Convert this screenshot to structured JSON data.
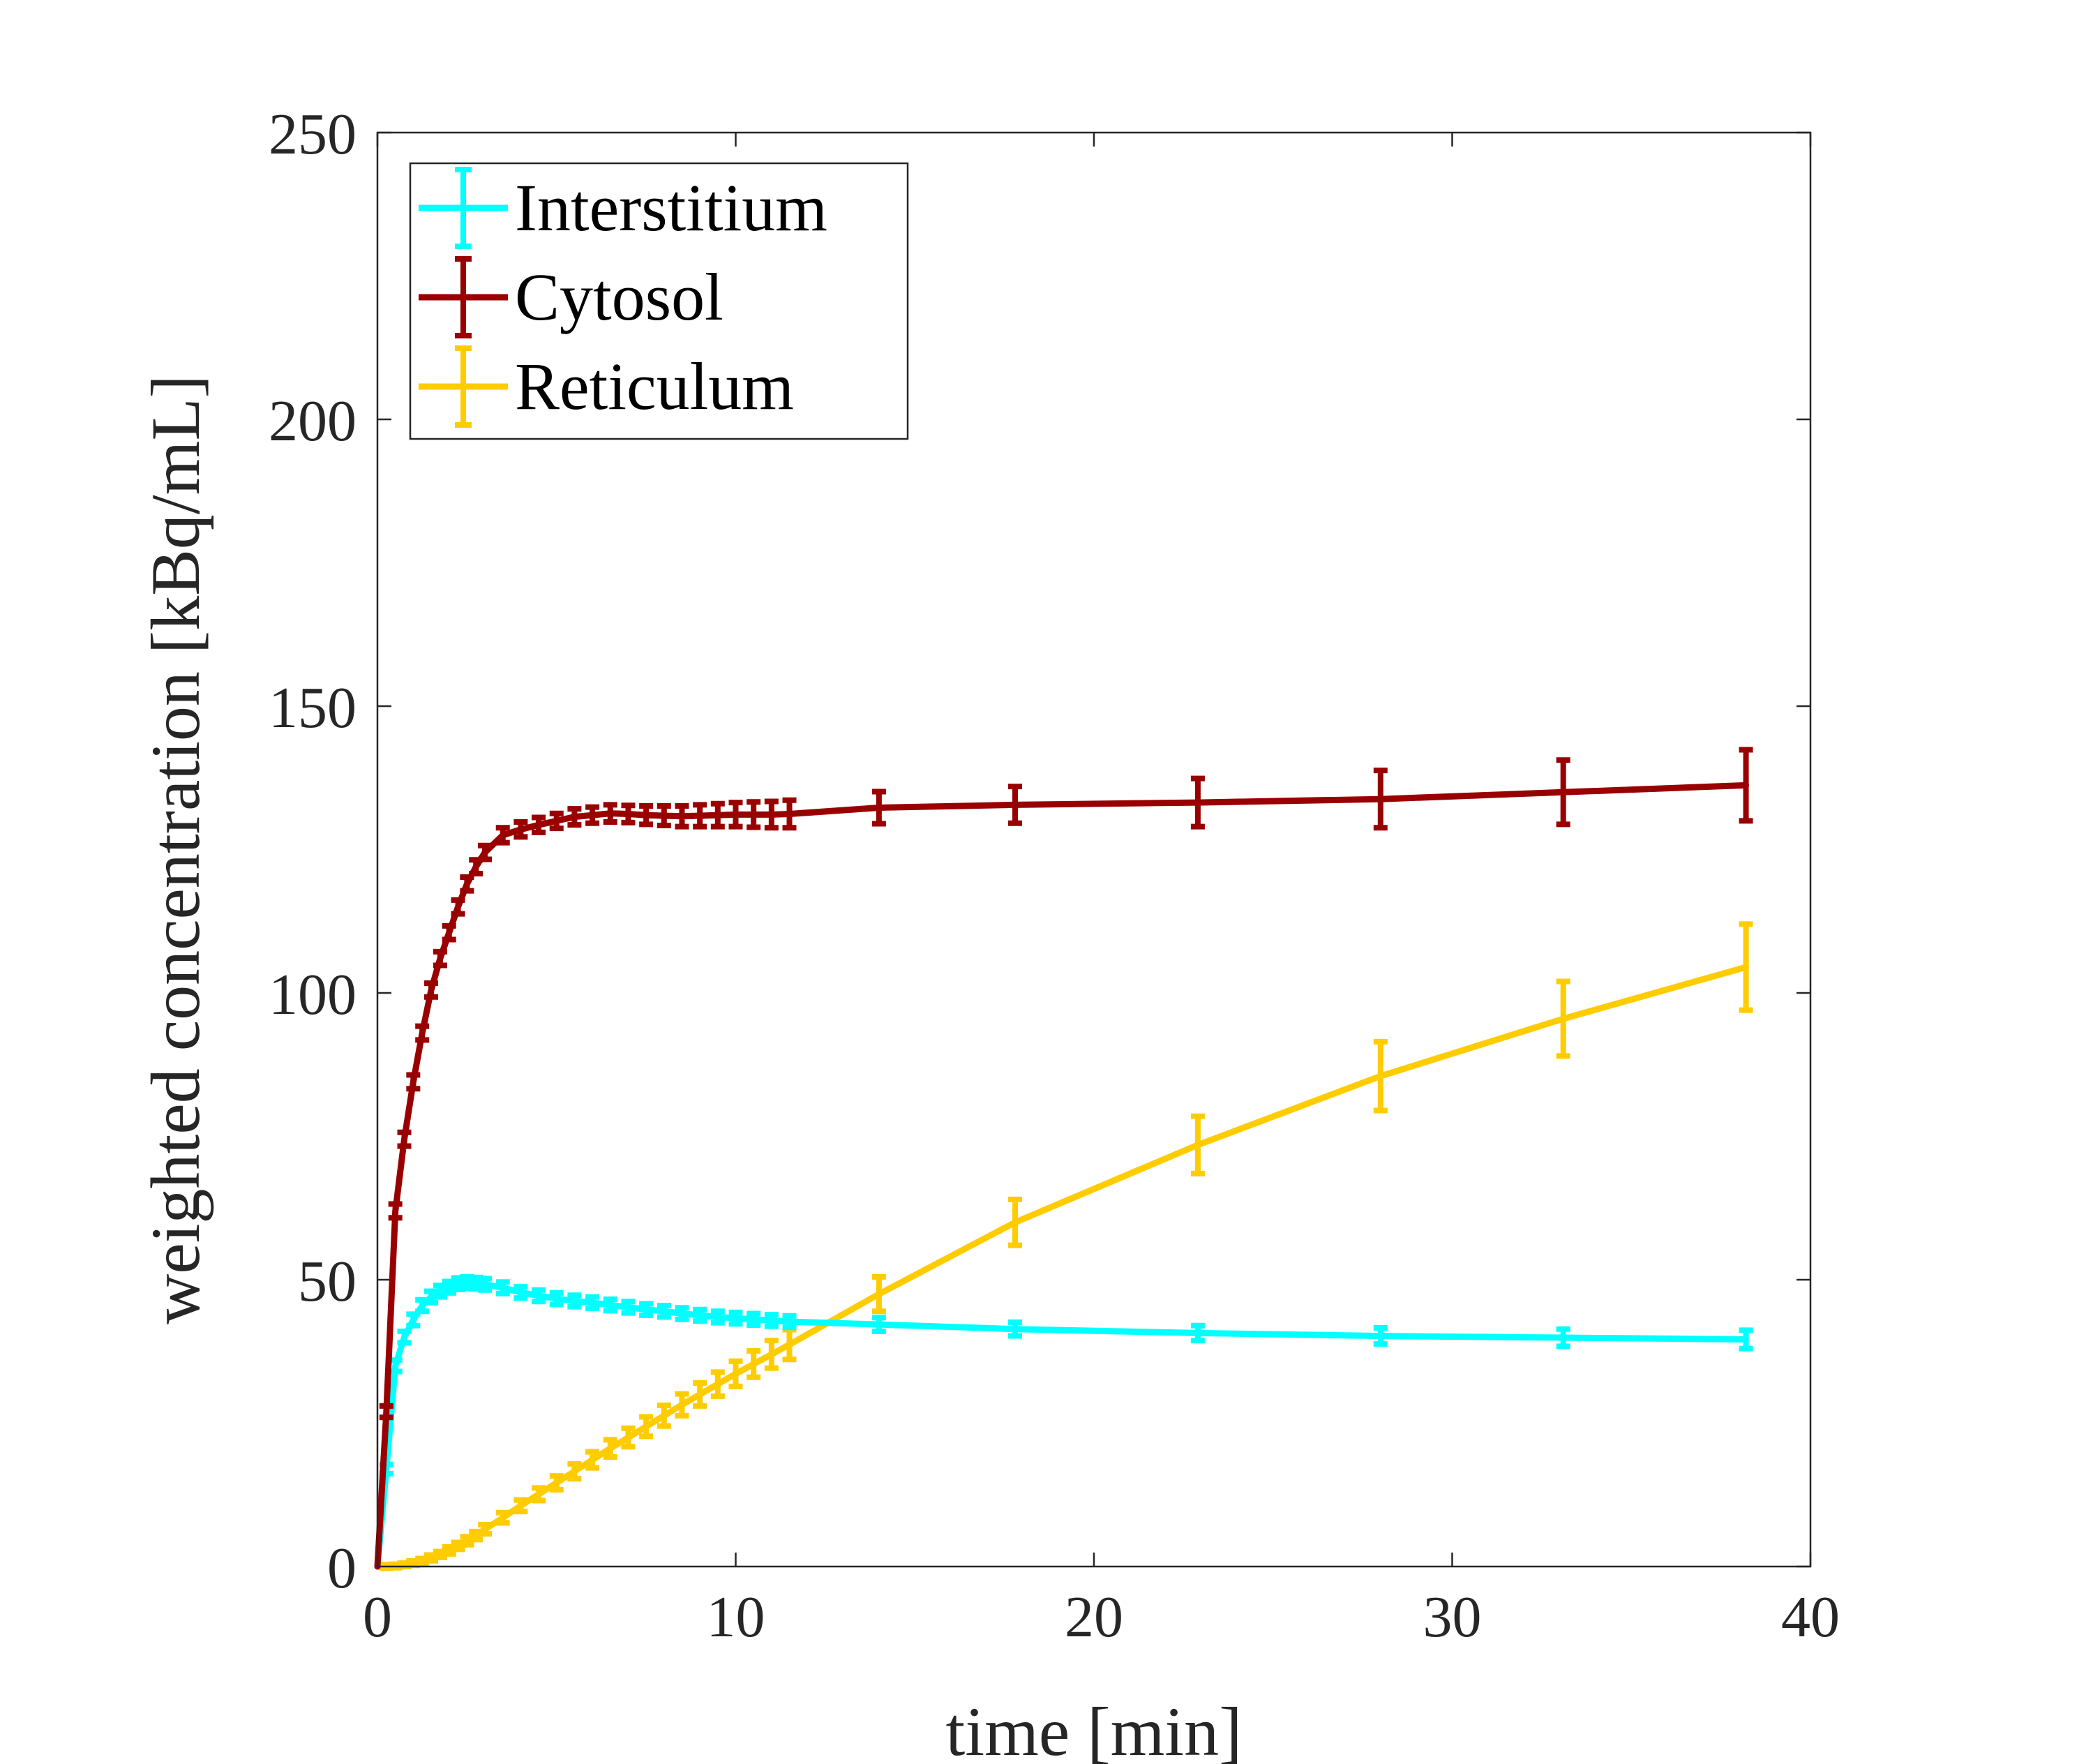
{
  "chart_data": {
    "type": "line",
    "xlabel": "time [min]",
    "ylabel": "weighted concentration [kBq/mL]",
    "xlim": [
      0,
      40
    ],
    "ylim": [
      0,
      250
    ],
    "xticks": [
      0,
      10,
      20,
      30,
      40
    ],
    "yticks": [
      0,
      50,
      100,
      150,
      200,
      250
    ],
    "grid": false,
    "legend_position": "top-left",
    "series": [
      {
        "name": "Interstitium",
        "color": "#00FFFF",
        "x": [
          0,
          0.25,
          0.5,
          0.75,
          1.0,
          1.25,
          1.5,
          1.75,
          2.0,
          2.25,
          2.5,
          2.75,
          3.0,
          3.5,
          4.0,
          4.5,
          5.0,
          5.5,
          6.0,
          6.5,
          7.0,
          7.5,
          8.0,
          8.5,
          9.0,
          9.5,
          10.0,
          10.5,
          11.0,
          11.5,
          14,
          17.8,
          22.9,
          28,
          33.1,
          38.2
        ],
        "y": [
          0,
          17,
          35,
          40,
          43,
          45.5,
          47,
          48,
          48.7,
          49.3,
          49.5,
          49.4,
          49.2,
          48.6,
          47.8,
          47.2,
          46.7,
          46.3,
          46.0,
          45.6,
          45.2,
          44.8,
          44.5,
          44.1,
          43.8,
          43.5,
          43.3,
          43.1,
          42.9,
          42.7,
          42.2,
          41.4,
          40.7,
          40.2,
          39.9,
          39.6
        ],
        "error": [
          0,
          0.8,
          1.0,
          1.0,
          1.0,
          1.0,
          1.0,
          1.0,
          1.0,
          1.0,
          1.0,
          1.0,
          1.0,
          1.0,
          1.0,
          1.0,
          1.0,
          1.0,
          1.0,
          1.0,
          1.0,
          1.0,
          1.0,
          1.0,
          1.0,
          1.0,
          1.0,
          1.0,
          1.0,
          1.0,
          1.2,
          1.2,
          1.3,
          1.4,
          1.5,
          1.6
        ]
      },
      {
        "name": "Cytosol",
        "color": "#990000",
        "x": [
          0,
          0.25,
          0.5,
          0.75,
          1.0,
          1.25,
          1.5,
          1.75,
          2.0,
          2.25,
          2.5,
          2.75,
          3.0,
          3.5,
          4.0,
          4.5,
          5.0,
          5.5,
          6.0,
          6.5,
          7.0,
          7.5,
          8.0,
          8.5,
          9.0,
          9.5,
          10.0,
          10.5,
          11.0,
          11.5,
          14,
          17.8,
          22.9,
          28,
          33.1,
          38.2
        ],
        "y": [
          0,
          27,
          62,
          74.5,
          84.5,
          93,
          100.5,
          106,
          110.5,
          115,
          119,
          122,
          124.5,
          127.5,
          128.5,
          129.3,
          130,
          130.7,
          131,
          131.3,
          131.2,
          131,
          130.9,
          130.8,
          130.9,
          131,
          131.1,
          131.1,
          131.1,
          131.2,
          132.3,
          132.8,
          133.2,
          133.8,
          135.0,
          136.2
        ],
        "error": [
          0,
          1.0,
          1.2,
          1.2,
          1.2,
          1.2,
          1.2,
          1.2,
          1.2,
          1.2,
          1.2,
          1.2,
          1.2,
          1.3,
          1.3,
          1.3,
          1.3,
          1.4,
          1.4,
          1.5,
          1.5,
          1.6,
          1.7,
          1.8,
          1.9,
          2.0,
          2.1,
          2.2,
          2.3,
          2.4,
          2.8,
          3.2,
          4.2,
          5.0,
          5.6,
          6.2
        ]
      },
      {
        "name": "Reticulum",
        "color": "#FFCC00",
        "x": [
          0,
          0.25,
          0.5,
          0.75,
          1.0,
          1.25,
          1.5,
          1.75,
          2.0,
          2.25,
          2.5,
          2.75,
          3.0,
          3.5,
          4.0,
          4.5,
          5.0,
          5.5,
          6.0,
          6.5,
          7.0,
          7.5,
          8.0,
          8.5,
          9.0,
          9.5,
          10.0,
          10.5,
          11.0,
          11.5,
          14,
          17.8,
          22.9,
          28,
          33.1,
          38.2
        ],
        "y": [
          0,
          0,
          0.1,
          0.3,
          0.6,
          1.0,
          1.5,
          2.1,
          2.8,
          3.6,
          4.5,
          5.4,
          6.5,
          8.5,
          10.6,
          12.6,
          14.6,
          16.6,
          18.6,
          20.6,
          22.5,
          24.4,
          26.3,
          28.2,
          30.0,
          31.8,
          33.6,
          35.3,
          37.0,
          38.7,
          47.5,
          60.0,
          73.5,
          85.5,
          95.5,
          104.5
        ],
        "error": [
          0,
          0.3,
          0.3,
          0.3,
          0.4,
          0.4,
          0.5,
          0.5,
          0.6,
          0.6,
          0.7,
          0.7,
          0.8,
          0.9,
          1.0,
          1.1,
          1.2,
          1.3,
          1.4,
          1.5,
          1.6,
          1.7,
          1.8,
          1.9,
          2.0,
          2.1,
          2.2,
          2.3,
          2.4,
          2.6,
          3.0,
          4.0,
          5.0,
          6.0,
          6.5,
          7.5
        ]
      }
    ]
  }
}
